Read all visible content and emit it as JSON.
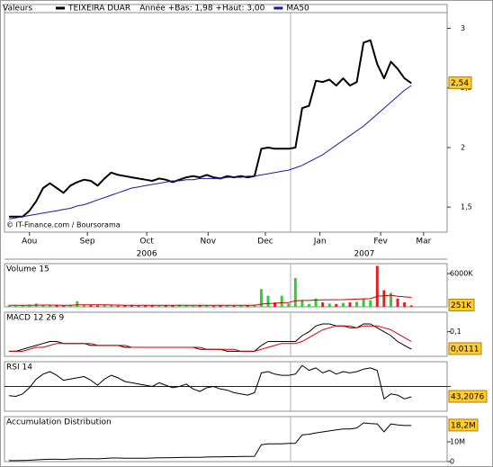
{
  "chart_data": [
    {
      "type": "line",
      "legend_label": "Valeurs",
      "subtitle": "Année +Bas: 1,98 +Haut: 3,00",
      "watermark": "© IT-Finance.com / Boursorama",
      "xlim": [
        -0.66,
        64.25
      ],
      "xticks": [
        {
          "value": 3,
          "label": "Aou"
        },
        {
          "value": 11.5,
          "label": "Sep"
        },
        {
          "value": 20.2,
          "label": "Oct"
        },
        {
          "value": 29.2,
          "label": "Nov"
        },
        {
          "value": 37.6,
          "label": "Dec"
        },
        {
          "value": 45.6,
          "label": "Jan"
        },
        {
          "value": 54.5,
          "label": "Fev"
        },
        {
          "value": 60.8,
          "label": "Mar"
        }
      ],
      "years": [
        {
          "value": 20.2,
          "label": "2006"
        },
        {
          "value": 52.1,
          "label": "2007"
        }
      ],
      "ylim": [
        1.29,
        3.2
      ],
      "yticks": [
        {
          "value": 1.5,
          "label": "1,5"
        },
        2,
        {
          "value": 2.5,
          "label": "2,5"
        },
        3
      ],
      "annotation": {
        "value": 2.54,
        "label": "2,54"
      },
      "series": [
        {
          "name": "TEIXEIRA DUAR",
          "color": "#000000",
          "width": 2,
          "values": [
            1.42,
            1.42,
            1.42,
            1.47,
            1.55,
            1.66,
            1.7,
            1.66,
            1.62,
            1.68,
            1.71,
            1.73,
            1.72,
            1.68,
            1.74,
            1.79,
            1.77,
            1.76,
            1.75,
            1.74,
            1.73,
            1.72,
            1.74,
            1.73,
            1.71,
            1.73,
            1.75,
            1.76,
            1.75,
            1.77,
            1.75,
            1.74,
            1.76,
            1.75,
            1.76,
            1.75,
            1.76,
            1.99,
            2.0,
            1.99,
            1.99,
            1.99,
            2.0,
            2.33,
            2.35,
            2.56,
            2.55,
            2.57,
            2.52,
            2.58,
            2.52,
            2.55,
            2.88,
            2.9,
            2.7,
            2.58,
            2.72,
            2.66,
            2.58,
            2.54
          ]
        },
        {
          "name": "MA50",
          "color": "#1a1aa0",
          "width": 1,
          "values": [
            1.4,
            1.41,
            1.42,
            1.43,
            1.44,
            1.45,
            1.46,
            1.47,
            1.48,
            1.49,
            1.51,
            1.52,
            1.54,
            1.56,
            1.58,
            1.6,
            1.62,
            1.64,
            1.66,
            1.67,
            1.68,
            1.69,
            1.7,
            1.71,
            1.72,
            1.72,
            1.73,
            1.73,
            1.74,
            1.74,
            1.74,
            1.74,
            1.75,
            1.75,
            1.75,
            1.76,
            1.76,
            1.77,
            1.78,
            1.79,
            1.8,
            1.81,
            1.83,
            1.85,
            1.88,
            1.91,
            1.94,
            1.98,
            2.02,
            2.06,
            2.1,
            2.14,
            2.18,
            2.23,
            2.28,
            2.33,
            2.38,
            2.43,
            2.48,
            2.52
          ]
        }
      ]
    },
    {
      "type": "bar",
      "title": "Volume 15",
      "ylim": [
        0,
        7800000
      ],
      "yticks": [
        {
          "value": 6000000,
          "label": "6000K"
        }
      ],
      "annotation": {
        "value": 251000,
        "label": "251K"
      },
      "series": [
        {
          "color": "#33cc33",
          "down_color": "#dd2222",
          "values": [
            300000,
            200000,
            250000,
            400000,
            600000,
            350000,
            300000,
            250000,
            200000,
            300000,
            1000000,
            400000,
            300000,
            250000,
            350000,
            300000,
            200000,
            250000,
            300000,
            200000,
            250000,
            300000,
            200000,
            250000,
            300000,
            400000,
            300000,
            200000,
            250000,
            300000,
            200000,
            250000,
            300000,
            200000,
            300000,
            250000,
            400000,
            3200000,
            2000000,
            800000,
            2000000,
            600000,
            5200000,
            1200000,
            500000,
            1500000,
            800000,
            600000,
            500000,
            700000,
            800000,
            900000,
            1500000,
            1200000,
            7400000,
            3000000,
            2500000,
            1500000,
            800000,
            251000
          ]
        },
        {
          "color": "#cc0000",
          "width": 1,
          "values": [
            300000,
            290000,
            280000,
            290000,
            310000,
            320000,
            320000,
            310000,
            300000,
            300000,
            350000,
            360000,
            360000,
            350000,
            350000,
            340000,
            320000,
            300000,
            300000,
            290000,
            280000,
            280000,
            270000,
            270000,
            270000,
            280000,
            280000,
            280000,
            270000,
            270000,
            270000,
            270000,
            270000,
            270000,
            270000,
            270000,
            280000,
            480000,
            600000,
            640000,
            750000,
            770000,
            1100000,
            1150000,
            1160000,
            1230000,
            1260000,
            1280000,
            1290000,
            1300000,
            1350000,
            1400000,
            1450000,
            1480000,
            1900000,
            2000000,
            2100000,
            1900000,
            1800000,
            1700000
          ]
        }
      ]
    },
    {
      "type": "line",
      "title": "MACD 12 26 9",
      "ylim": [
        -0.026,
        0.2
      ],
      "yticks": [
        {
          "value": 0.1,
          "label": "0,1"
        }
      ],
      "annotation": {
        "value": 0.0111,
        "label": "0,0111"
      },
      "series": [
        {
          "color": "#000000",
          "width": 1,
          "values": [
            0.0,
            0.0,
            0.01,
            0.02,
            0.03,
            0.04,
            0.05,
            0.05,
            0.04,
            0.04,
            0.04,
            0.04,
            0.03,
            0.03,
            0.03,
            0.03,
            0.03,
            0.02,
            0.02,
            0.02,
            0.02,
            0.02,
            0.02,
            0.02,
            0.02,
            0.02,
            0.02,
            0.02,
            0.01,
            0.01,
            0.01,
            0.01,
            0.0,
            0.0,
            0.0,
            0.0,
            0.0,
            0.03,
            0.05,
            0.05,
            0.05,
            0.05,
            0.05,
            0.08,
            0.1,
            0.13,
            0.14,
            0.14,
            0.13,
            0.13,
            0.12,
            0.12,
            0.14,
            0.14,
            0.12,
            0.1,
            0.08,
            0.05,
            0.03,
            0.0111
          ]
        },
        {
          "color": "#cc0000",
          "width": 1,
          "values": [
            0.0,
            0.0,
            0.0,
            0.01,
            0.02,
            0.02,
            0.03,
            0.04,
            0.04,
            0.04,
            0.04,
            0.04,
            0.04,
            0.03,
            0.03,
            0.03,
            0.03,
            0.03,
            0.02,
            0.02,
            0.02,
            0.02,
            0.02,
            0.02,
            0.02,
            0.02,
            0.02,
            0.02,
            0.02,
            0.01,
            0.01,
            0.01,
            0.01,
            0.01,
            0.0,
            0.0,
            0.0,
            0.01,
            0.02,
            0.03,
            0.04,
            0.04,
            0.04,
            0.05,
            0.07,
            0.09,
            0.11,
            0.12,
            0.13,
            0.13,
            0.13,
            0.12,
            0.13,
            0.13,
            0.13,
            0.12,
            0.11,
            0.09,
            0.07,
            0.05
          ]
        }
      ]
    },
    {
      "type": "line",
      "title": "RSI 14",
      "ylim": [
        20,
        100
      ],
      "yticks": [
        60
      ],
      "grid": true,
      "annotation": {
        "value": 43.2076,
        "label": "43,2076"
      },
      "series": [
        {
          "color": "#000000",
          "width": 1,
          "values": [
            45,
            44,
            48,
            58,
            72,
            80,
            84,
            78,
            70,
            72,
            74,
            76,
            70,
            62,
            72,
            78,
            74,
            68,
            66,
            64,
            62,
            60,
            66,
            62,
            58,
            60,
            64,
            56,
            52,
            58,
            60,
            56,
            54,
            50,
            48,
            46,
            50,
            82,
            84,
            80,
            78,
            78,
            80,
            94,
            86,
            90,
            82,
            86,
            80,
            84,
            82,
            84,
            88,
            90,
            86,
            40,
            48,
            46,
            40,
            43.2076
          ]
        }
      ]
    },
    {
      "type": "line",
      "title": "Accumulation Distribution",
      "ylim": [
        0,
        22700000
      ],
      "yticks": [
        0,
        {
          "value": 10000000,
          "label": "10M"
        }
      ],
      "annotation": {
        "value": 18200000,
        "label": "18,2M"
      },
      "series": [
        {
          "color": "#000000",
          "width": 1,
          "values": [
            500000,
            500000,
            600000,
            700000,
            900000,
            1100000,
            1200000,
            1200000,
            1100000,
            1300000,
            1400000,
            1500000,
            1500000,
            1400000,
            1600000,
            1800000,
            1800000,
            1700000,
            1700000,
            1700000,
            1700000,
            1800000,
            1900000,
            1900000,
            2000000,
            2100000,
            2200000,
            2200000,
            2200000,
            2300000,
            2400000,
            2400000,
            2500000,
            2500000,
            2600000,
            2600000,
            2700000,
            8500000,
            9000000,
            9000000,
            9000000,
            9200000,
            9200000,
            13500000,
            13800000,
            14500000,
            15000000,
            15500000,
            16000000,
            16500000,
            16500000,
            17000000,
            19500000,
            19200000,
            19000000,
            15000000,
            19000000,
            18500000,
            18200000,
            18200000
          ]
        }
      ]
    }
  ]
}
